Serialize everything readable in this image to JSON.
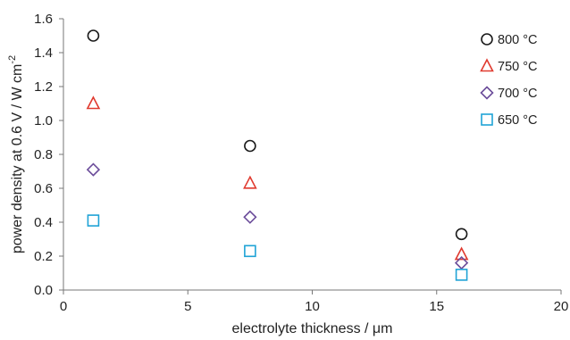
{
  "chart_data": {
    "type": "scatter",
    "xlabel": "electrolyte thickness / μm",
    "ylabel": {
      "main": "power density at 0.6 V / W cm",
      "superscript": "-2"
    },
    "xlim": [
      0,
      20
    ],
    "ylim": [
      0,
      1.6
    ],
    "xticks": [
      "0",
      "5",
      "10",
      "15",
      "20"
    ],
    "yticks": [
      "0.0",
      "0.2",
      "0.4",
      "0.6",
      "0.8",
      "1.0",
      "1.2",
      "1.4",
      "1.6"
    ],
    "xtick_values": [
      0,
      5,
      10,
      15,
      20
    ],
    "ytick_values": [
      0,
      0.2,
      0.4,
      0.6,
      0.8,
      1.0,
      1.2,
      1.4,
      1.6
    ],
    "grid": false,
    "legend_position": "top-right",
    "series": [
      {
        "name": "800  °C",
        "marker": "circle",
        "color": "#1a1a1a",
        "x": [
          1.2,
          7.5,
          16.0
        ],
        "y": [
          1.5,
          0.85,
          0.33
        ]
      },
      {
        "name": "750  °C",
        "marker": "triangle",
        "color": "#e03a2f",
        "x": [
          1.2,
          7.5,
          16.0
        ],
        "y": [
          1.1,
          0.63,
          0.21
        ]
      },
      {
        "name": "700 °C",
        "marker": "diamond",
        "color": "#6b4c9a",
        "x": [
          1.2,
          7.5,
          16.0
        ],
        "y": [
          0.71,
          0.43,
          0.16
        ]
      },
      {
        "name": "650 °C",
        "marker": "square",
        "color": "#1fa3d6",
        "x": [
          1.2,
          7.5,
          16.0
        ],
        "y": [
          0.41,
          0.23,
          0.09
        ]
      }
    ]
  }
}
